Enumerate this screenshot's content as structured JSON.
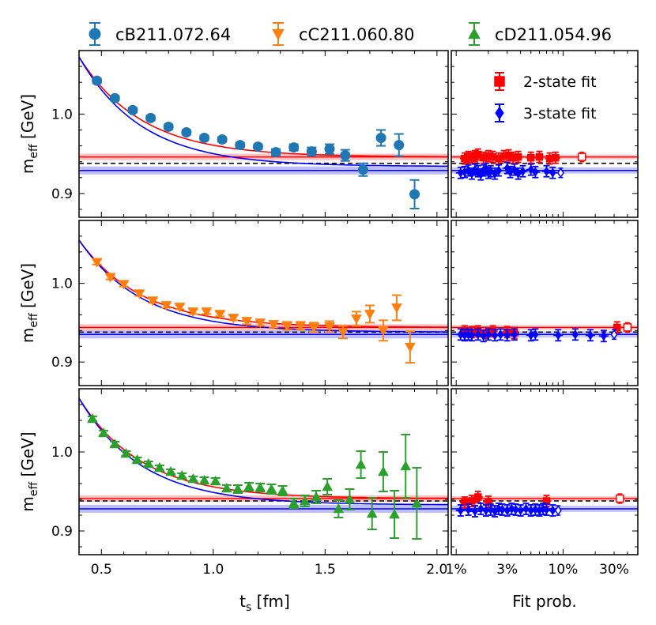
{
  "chart_data": [
    {
      "type": "scatter",
      "panel": "top",
      "xlabel": "t",
      "xlabel_sub": "s",
      "xlabel_unit": " [fm]",
      "ylabel": "m",
      "ylabel_sub": "eff",
      "ylabel_unit": " [GeV]",
      "xlim": [
        0.4,
        2.05
      ],
      "ylim": [
        0.87,
        1.08
      ],
      "series": [
        {
          "name": "cB211.072.64",
          "color": "#1f77b4",
          "marker": "circle",
          "x": [
            0.48,
            0.56,
            0.64,
            0.72,
            0.8,
            0.88,
            0.96,
            1.04,
            1.12,
            1.2,
            1.28,
            1.36,
            1.44,
            1.52,
            1.59,
            1.67,
            1.75,
            1.83,
            1.9
          ],
          "y": [
            1.042,
            1.02,
            1.005,
            0.995,
            0.984,
            0.977,
            0.97,
            0.968,
            0.961,
            0.959,
            0.952,
            0.958,
            0.953,
            0.956,
            0.948,
            0.93,
            0.97,
            0.961,
            0.899
          ],
          "err": [
            0.003,
            0.003,
            0.003,
            0.003,
            0.003,
            0.003,
            0.003,
            0.003,
            0.003,
            0.003,
            0.004,
            0.004,
            0.005,
            0.006,
            0.007,
            0.008,
            0.01,
            0.014,
            0.018
          ]
        }
      ],
      "bands": {
        "two_state": 0.946,
        "three_state": 0.929,
        "dashed": 0.938
      },
      "fit_curve": {
        "y_start": 1.072,
        "y_end_two_state": 0.946,
        "y_end_three_state": 0.934
      }
    },
    {
      "type": "scatter",
      "panel": "middle",
      "xlabel": "t",
      "xlabel_sub": "s",
      "xlabel_unit": " [fm]",
      "ylabel": "m",
      "ylabel_sub": "eff",
      "ylabel_unit": " [GeV]",
      "xlim": [
        0.4,
        2.05
      ],
      "ylim": [
        0.87,
        1.08
      ],
      "series": [
        {
          "name": "cC211.060.80",
          "color": "#ff7f0e",
          "marker": "triangle-down",
          "x": [
            0.48,
            0.54,
            0.6,
            0.67,
            0.73,
            0.79,
            0.85,
            0.91,
            0.97,
            1.03,
            1.09,
            1.15,
            1.21,
            1.27,
            1.33,
            1.39,
            1.45,
            1.52,
            1.58,
            1.64,
            1.7,
            1.76,
            1.82,
            1.88
          ],
          "y": [
            1.027,
            1.008,
            0.999,
            0.987,
            0.978,
            0.972,
            0.97,
            0.964,
            0.964,
            0.961,
            0.956,
            0.952,
            0.95,
            0.948,
            0.946,
            0.946,
            0.944,
            0.945,
            0.938,
            0.955,
            0.961,
            0.94,
            0.969,
            0.919
          ],
          "err": [
            0.003,
            0.003,
            0.003,
            0.003,
            0.003,
            0.003,
            0.003,
            0.003,
            0.003,
            0.003,
            0.003,
            0.004,
            0.004,
            0.004,
            0.005,
            0.005,
            0.006,
            0.007,
            0.008,
            0.009,
            0.011,
            0.013,
            0.016,
            0.02
          ]
        }
      ],
      "bands": {
        "two_state": 0.944,
        "three_state": 0.935,
        "dashed": 0.938
      },
      "fit_curve": {
        "y_start": 1.055,
        "y_end_two_state": 0.944,
        "y_end_three_state": 0.938
      }
    },
    {
      "type": "scatter",
      "panel": "bottom",
      "xlabel": "t",
      "xlabel_sub": "s",
      "xlabel_unit": " [fm]",
      "ylabel": "m",
      "ylabel_sub": "eff",
      "ylabel_unit": " [GeV]",
      "xlim": [
        0.4,
        2.05
      ],
      "ylim": [
        0.87,
        1.08
      ],
      "x_ticks": [
        0.5,
        1.0,
        1.5,
        2.0
      ],
      "x_tick_labels": [
        "0.5",
        "1.0",
        "1.5",
        "2.0"
      ],
      "series": [
        {
          "name": "cD211.054.96",
          "color": "#2ca02c",
          "marker": "triangle-up",
          "x": [
            0.46,
            0.51,
            0.56,
            0.61,
            0.66,
            0.71,
            0.76,
            0.81,
            0.86,
            0.91,
            0.96,
            1.01,
            1.06,
            1.11,
            1.16,
            1.21,
            1.26,
            1.31,
            1.36,
            1.41,
            1.46,
            1.51,
            1.56,
            1.61,
            1.66,
            1.71,
            1.76,
            1.81,
            1.86,
            1.91
          ],
          "y": [
            1.042,
            1.024,
            1.01,
            0.998,
            0.99,
            0.985,
            0.98,
            0.975,
            0.97,
            0.966,
            0.964,
            0.963,
            0.954,
            0.953,
            0.956,
            0.955,
            0.953,
            0.951,
            0.935,
            0.938,
            0.943,
            0.956,
            0.928,
            0.94,
            0.984,
            0.922,
            0.975,
            0.921,
            0.982,
            0.935
          ],
          "err": [
            0.003,
            0.003,
            0.003,
            0.003,
            0.003,
            0.003,
            0.003,
            0.003,
            0.003,
            0.003,
            0.004,
            0.004,
            0.004,
            0.005,
            0.005,
            0.005,
            0.006,
            0.006,
            0.006,
            0.007,
            0.008,
            0.01,
            0.011,
            0.013,
            0.017,
            0.02,
            0.025,
            0.03,
            0.04,
            0.045
          ]
        }
      ],
      "bands": {
        "two_state": 0.941,
        "three_state": 0.928,
        "dashed": 0.938
      },
      "fit_curve": {
        "y_start": 1.068,
        "y_end_two_state": 0.941,
        "y_end_three_state": 0.933
      }
    },
    {
      "type": "scatter",
      "panel": "fit-probability",
      "xlabel": "Fit prob.",
      "xscale": "log",
      "xlim": [
        0.009,
        0.5
      ],
      "x_ticks": [
        0.01,
        0.03,
        0.1,
        0.3
      ],
      "x_tick_labels": [
        "1%",
        "3%",
        "10%",
        "30%"
      ],
      "series": [
        {
          "name": "2-state fit",
          "color": "#ff0000",
          "marker": "square"
        },
        {
          "name": "3-state fit",
          "color": "#0000ff",
          "marker": "diamond"
        }
      ],
      "rows": [
        {
          "two_state": {
            "x": [
              0.012,
              0.013,
              0.014,
              0.015,
              0.016,
              0.018,
              0.02,
              0.022,
              0.025,
              0.028,
              0.031,
              0.034,
              0.038,
              0.05,
              0.06,
              0.075,
              0.085
            ],
            "y": [
              0.944,
              0.946,
              0.945,
              0.947,
              0.949,
              0.945,
              0.947,
              0.946,
              0.944,
              0.947,
              0.948,
              0.945,
              0.946,
              0.945,
              0.946,
              0.944,
              0.945
            ],
            "open_x": 0.15,
            "open_y": 0.946
          },
          "three_state": {
            "x": [
              0.011,
              0.012,
              0.013,
              0.014,
              0.015,
              0.016,
              0.017,
              0.018,
              0.019,
              0.02,
              0.021,
              0.023,
              0.025,
              0.03,
              0.032,
              0.035,
              0.038,
              0.042,
              0.05,
              0.055,
              0.07,
              0.08
            ],
            "y": [
              0.926,
              0.927,
              0.929,
              0.925,
              0.93,
              0.928,
              0.924,
              0.929,
              0.931,
              0.926,
              0.928,
              0.925,
              0.929,
              0.932,
              0.927,
              0.93,
              0.925,
              0.928,
              0.93,
              0.927,
              0.928,
              0.926
            ],
            "open_x": 0.095,
            "open_y": 0.926
          },
          "band2": 0.946,
          "band3": 0.929,
          "dashed": 0.938
        },
        {
          "two_state": {
            "x": [
              0.012,
              0.014,
              0.016,
              0.019,
              0.022,
              0.03,
              0.035,
              0.32
            ],
            "y": [
              0.939,
              0.938,
              0.939,
              0.937,
              0.939,
              0.938,
              0.937,
              0.944
            ],
            "open_x": 0.4,
            "open_y": 0.944
          },
          "three_state": {
            "x": [
              0.011,
              0.012,
              0.013,
              0.014,
              0.016,
              0.018,
              0.02,
              0.023,
              0.026,
              0.03,
              0.035,
              0.05,
              0.055,
              0.09,
              0.13,
              0.18,
              0.24
            ],
            "y": [
              0.935,
              0.934,
              0.935,
              0.934,
              0.935,
              0.933,
              0.935,
              0.934,
              0.935,
              0.934,
              0.935,
              0.934,
              0.935,
              0.934,
              0.935,
              0.934,
              0.933
            ],
            "open_x": 0.3,
            "open_y": 0.935
          },
          "band2": 0.944,
          "band3": 0.935,
          "dashed": 0.938
        },
        {
          "two_state": {
            "x": [
              0.012,
              0.014,
              0.016,
              0.02,
              0.07
            ],
            "y": [
              0.936,
              0.938,
              0.943,
              0.937,
              0.938
            ],
            "open_x": 0.34,
            "open_y": 0.941
          },
          "three_state": {
            "x": [
              0.011,
              0.013,
              0.015,
              0.017,
              0.019,
              0.021,
              0.023,
              0.025,
              0.027,
              0.03,
              0.033,
              0.036,
              0.04,
              0.045,
              0.05,
              0.055,
              0.06,
              0.065,
              0.07,
              0.08
            ],
            "y": [
              0.926,
              0.927,
              0.925,
              0.928,
              0.926,
              0.927,
              0.925,
              0.928,
              0.927,
              0.926,
              0.928,
              0.927,
              0.926,
              0.928,
              0.926,
              0.927,
              0.926,
              0.928,
              0.927,
              0.926
            ],
            "open_x": 0.09,
            "open_y": 0.926
          },
          "band2": 0.941,
          "band3": 0.928,
          "dashed": 0.938
        }
      ]
    }
  ],
  "y_ticks": [
    0.9,
    1.0
  ],
  "y_tick_labels": [
    "0.9",
    "1.0"
  ]
}
